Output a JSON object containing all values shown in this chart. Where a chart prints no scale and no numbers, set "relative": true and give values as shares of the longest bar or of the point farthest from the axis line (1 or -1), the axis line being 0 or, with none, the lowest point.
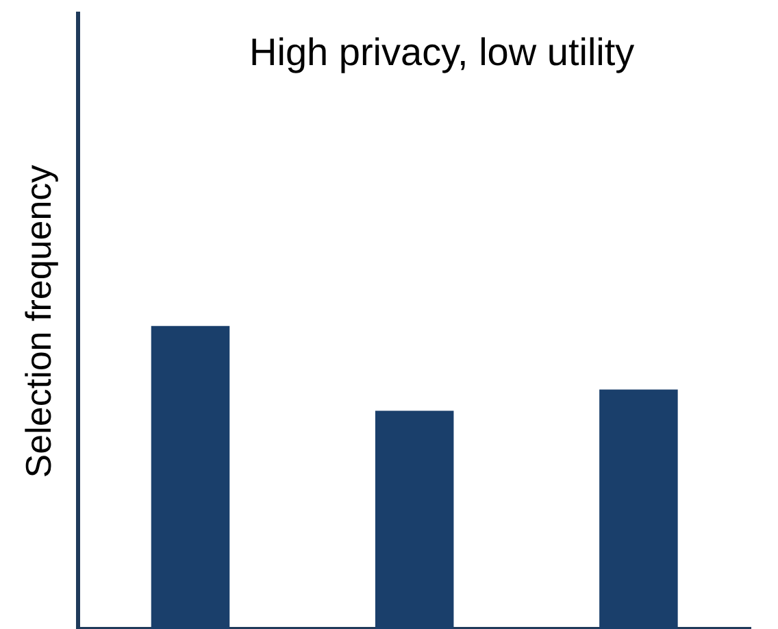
{
  "chart_data": {
    "type": "bar",
    "title": "High privacy, low utility",
    "ylabel": "Selection frequency",
    "categories": [
      null,
      null,
      null
    ],
    "relative": true,
    "values": [
      1,
      0.72,
      0.79
    ],
    "color": "#1a3f6b",
    "grid": false,
    "legend": false
  }
}
